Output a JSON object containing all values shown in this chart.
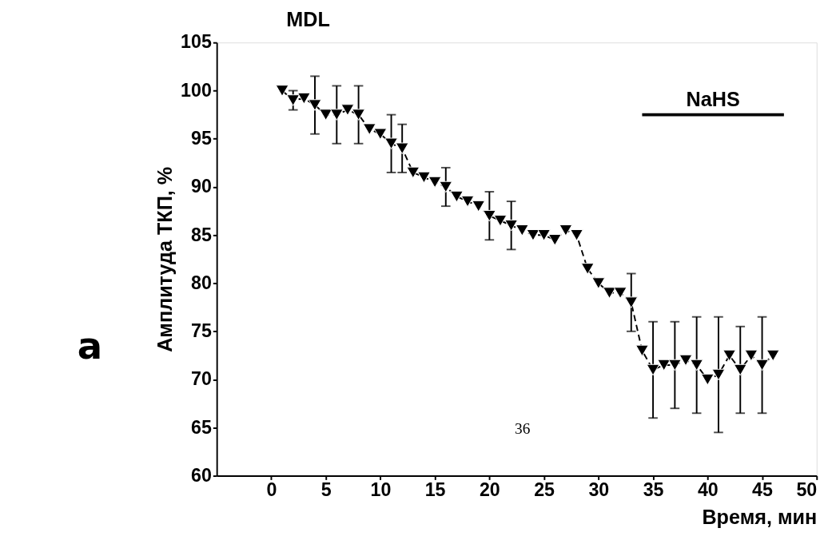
{
  "chart_data": {
    "type": "line",
    "title": "MDL",
    "xlabel": "Время, мин",
    "ylabel": "Амплитуда ТКП, %",
    "x": [
      1,
      2,
      3,
      4,
      5,
      6,
      7,
      8,
      9,
      10,
      11,
      12,
      13,
      14,
      15,
      16,
      17,
      18,
      19,
      20,
      21,
      22,
      23,
      24,
      25,
      26,
      27,
      28,
      29,
      30,
      31,
      32,
      33,
      34,
      35,
      36,
      37,
      38,
      39,
      40,
      41,
      42,
      43,
      44,
      45,
      46
    ],
    "series": [
      {
        "color": "#000000",
        "values": [
          100,
          99,
          99.2,
          98.5,
          97.5,
          97.5,
          98,
          97.5,
          96,
          95.5,
          94.5,
          94,
          91.5,
          91,
          90.5,
          90,
          89,
          88.5,
          88,
          87,
          86.5,
          86,
          85.5,
          85,
          85,
          84.5,
          85.5,
          85,
          81.5,
          80,
          79,
          79,
          78,
          73,
          71,
          71.5,
          71.5,
          72,
          71.5,
          70,
          70.5,
          72.5,
          71,
          72.5,
          71.5,
          72.5
        ],
        "errors": [
          null,
          1,
          null,
          3,
          null,
          3,
          null,
          3,
          null,
          null,
          3,
          2.5,
          null,
          null,
          null,
          2,
          null,
          null,
          null,
          2.5,
          null,
          2.5,
          null,
          null,
          null,
          null,
          null,
          null,
          null,
          null,
          null,
          null,
          3,
          null,
          5,
          null,
          4.5,
          null,
          5,
          null,
          6,
          null,
          4.5,
          null,
          5,
          null
        ]
      },
      {
        "name": "NaHS",
        "type": "line",
        "line_style": "solid",
        "marker": "none",
        "color": "#000000",
        "x": [
          34,
          47
        ],
        "values": [
          97.5,
          97.5
        ]
      }
    ],
    "xlim": [
      -5,
      50
    ],
    "xticks": [
      0,
      5,
      10,
      15,
      20,
      25,
      30,
      35,
      40,
      45,
      50
    ],
    "ylim": [
      60,
      105
    ],
    "yticks": [
      60,
      65,
      70,
      75,
      80,
      85,
      90,
      95,
      100,
      105
    ],
    "marker": "triangle",
    "line_style": "dashed",
    "grid": false,
    "legend": false,
    "annotations": [
      "a",
      "36"
    ]
  }
}
